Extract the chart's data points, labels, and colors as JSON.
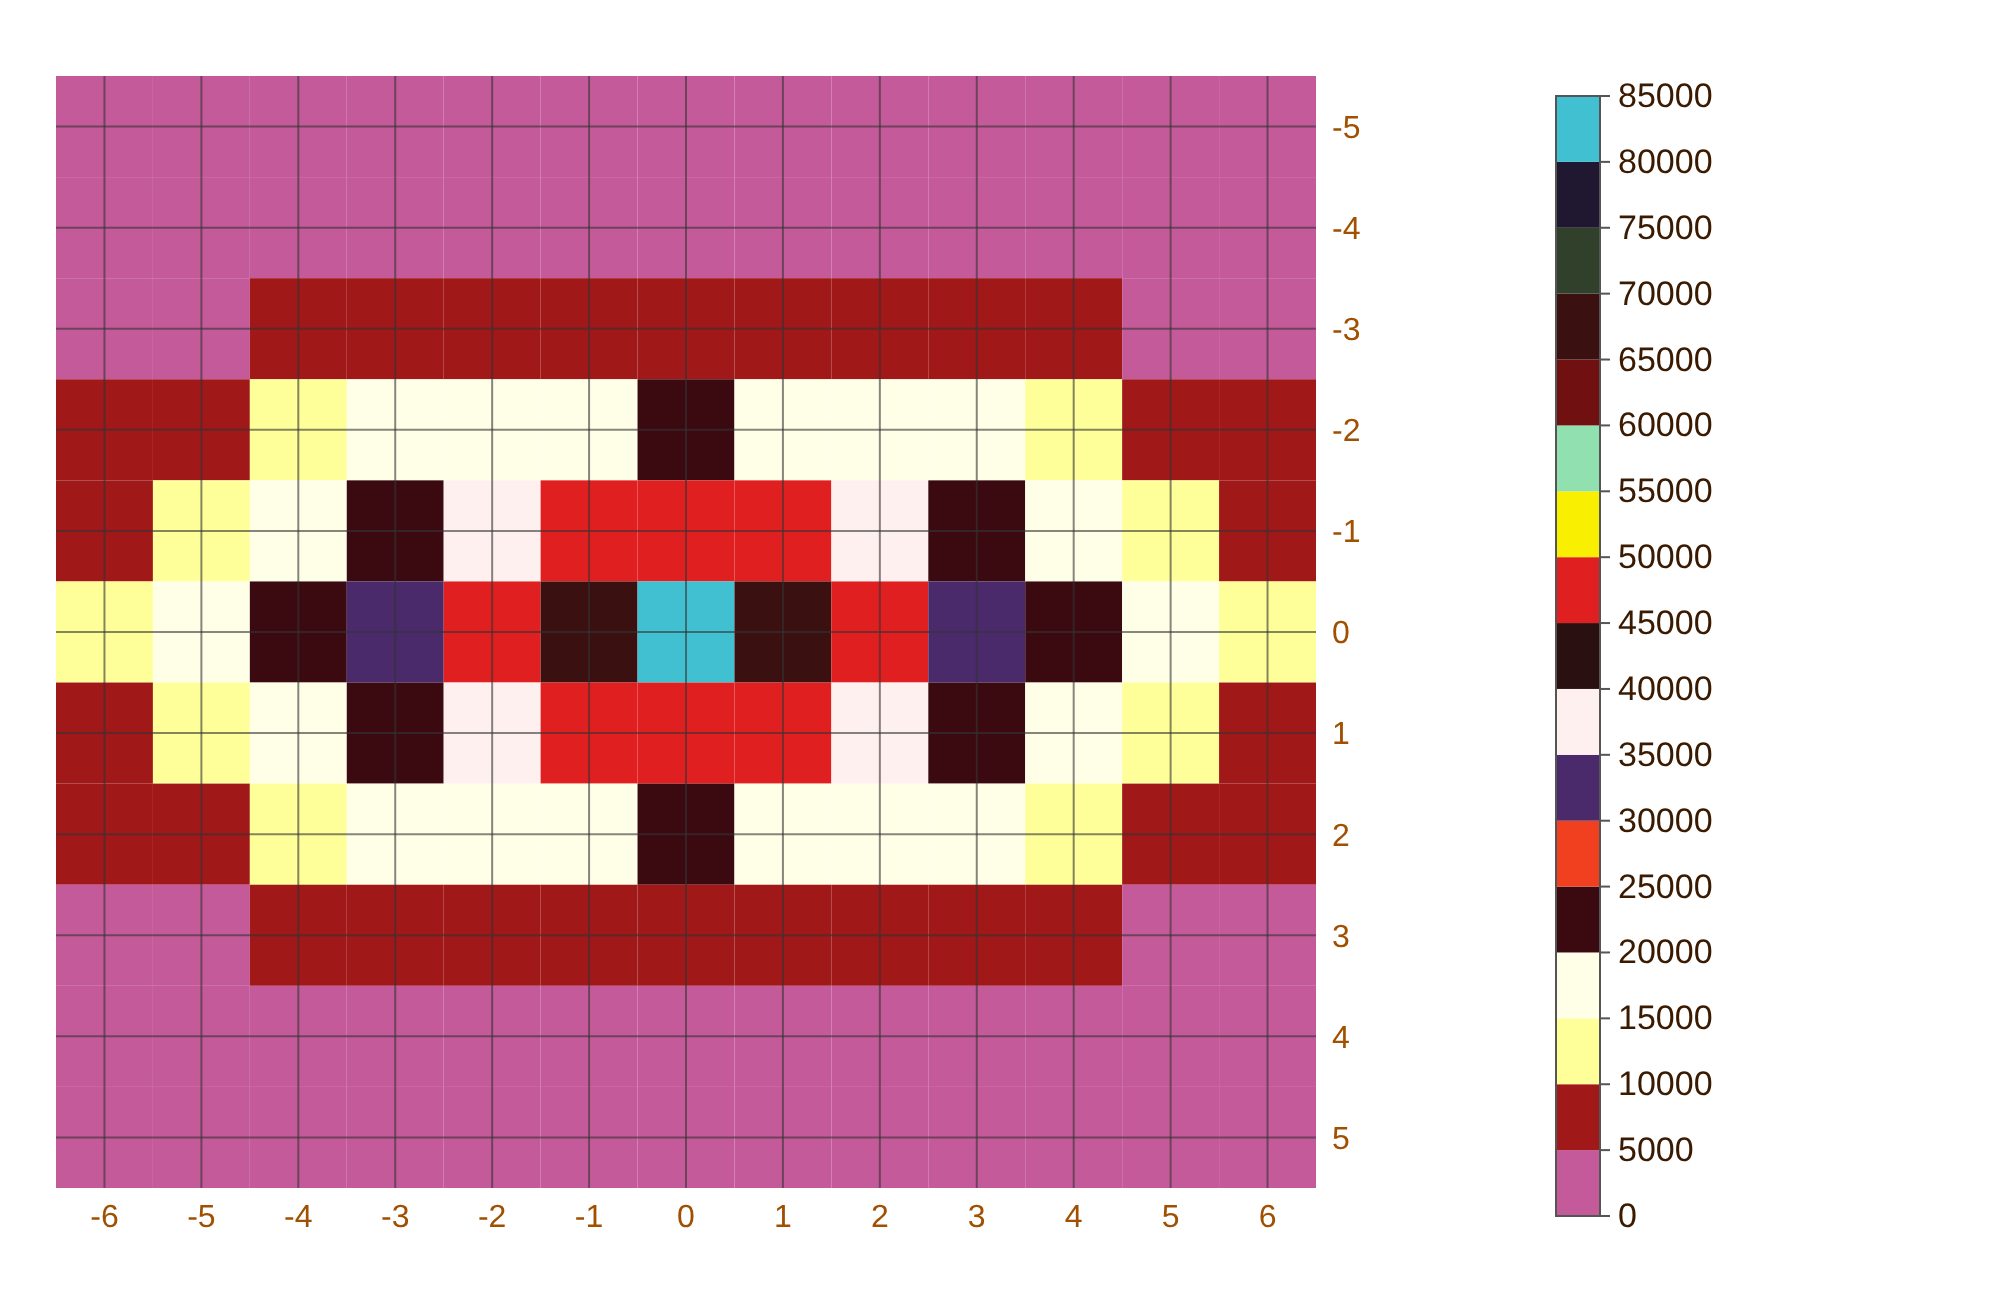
{
  "chart_data": {
    "type": "heatmap",
    "categories": [
      "-6",
      "-5",
      "-4",
      "-3",
      "-2",
      "-1",
      "0",
      "1",
      "2",
      "3",
      "4",
      "5",
      "6"
    ],
    "y_categories": [
      "-5",
      "-4",
      "-3",
      "-2",
      "-1",
      "0",
      "1",
      "2",
      "3",
      "4",
      "5"
    ],
    "cells": [
      [
        1000,
        1000,
        1000,
        1000,
        1000,
        1000,
        1000,
        1000,
        1000,
        1000,
        1000,
        1000,
        1000
      ],
      [
        2000,
        2000,
        2000,
        2000,
        2000,
        2000,
        2000,
        2000,
        2000,
        2000,
        2000,
        2000,
        2000
      ],
      [
        3000,
        4000,
        6000,
        6500,
        7000,
        7000,
        7000,
        7000,
        7000,
        6500,
        6000,
        4000,
        3000
      ],
      [
        6000,
        9000,
        14000,
        17000,
        18000,
        19000,
        20000,
        19000,
        18000,
        17000,
        14000,
        9000,
        6000
      ],
      [
        9000,
        13000,
        19000,
        24000,
        35000,
        45000,
        48000,
        45000,
        35000,
        24000,
        19000,
        13000,
        9000
      ],
      [
        11000,
        15000,
        22000,
        30000,
        48000,
        68000,
        84000,
        68000,
        48000,
        30000,
        22000,
        15000,
        11000
      ],
      [
        9000,
        13000,
        19000,
        24000,
        35000,
        45000,
        48000,
        45000,
        35000,
        24000,
        19000,
        13000,
        9000
      ],
      [
        6000,
        9000,
        14000,
        17000,
        18000,
        19000,
        20000,
        19000,
        18000,
        17000,
        14000,
        9000,
        6000
      ],
      [
        3000,
        4000,
        6000,
        6500,
        7000,
        7000,
        7000,
        7000,
        7000,
        6500,
        6000,
        4000,
        3000
      ],
      [
        2000,
        2000,
        2000,
        2000,
        2000,
        2000,
        2000,
        2000,
        2000,
        2000,
        2000,
        2000,
        2000
      ],
      [
        1000,
        1000,
        1000,
        1000,
        1000,
        1000,
        1000,
        1000,
        1000,
        1000,
        1000,
        1000,
        1000
      ]
    ],
    "clim": [
      0,
      85000
    ],
    "cticks": [
      0,
      5000,
      10000,
      15000,
      20000,
      25000,
      30000,
      35000,
      40000,
      45000,
      50000,
      55000,
      60000,
      65000,
      70000,
      75000,
      80000,
      85000
    ],
    "colors": [
      "#c45a9a",
      "#a01818",
      "#ffff99",
      "#ffffe8",
      "#3a0a10",
      "#f04020",
      "#4a2a6a",
      "#fff0f0",
      "#2a1010",
      "#e02020",
      "#f8f000",
      "#90e0b0",
      "#701010",
      "#3a1010",
      "#30402a",
      "#201830",
      "#40c0d0"
    ],
    "grid": true
  }
}
